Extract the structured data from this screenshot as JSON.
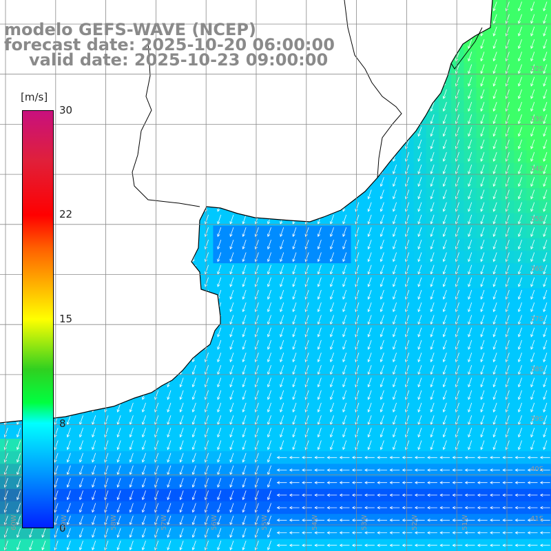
{
  "title": {
    "line1": "modelo GEFS-WAVE (NCEP)",
    "line2": "forecast date: 2025-10-20 06:00:00",
    "line3": "valid date: 2025-10-23 09:00:00"
  },
  "colorbar": {
    "unit": "[m/s]",
    "ticks": [
      "30",
      "22",
      "15",
      "8",
      "0"
    ],
    "colors": [
      "#c8107e",
      "#ff0000",
      "#ffff00",
      "#00ff40",
      "#00ffff",
      "#0020ff"
    ]
  },
  "lat_labels": [
    "32S",
    "33S",
    "34S",
    "35S",
    "36S",
    "37S",
    "38S",
    "39S",
    "40S",
    "41S"
  ],
  "lon_labels": [
    "60W",
    "59W",
    "58W",
    "57W",
    "56W",
    "55W",
    "54W",
    "53W",
    "52W",
    "51W"
  ],
  "land_color": "#ffffff",
  "coast_color": "#000000",
  "grid_color": "#888888"
}
